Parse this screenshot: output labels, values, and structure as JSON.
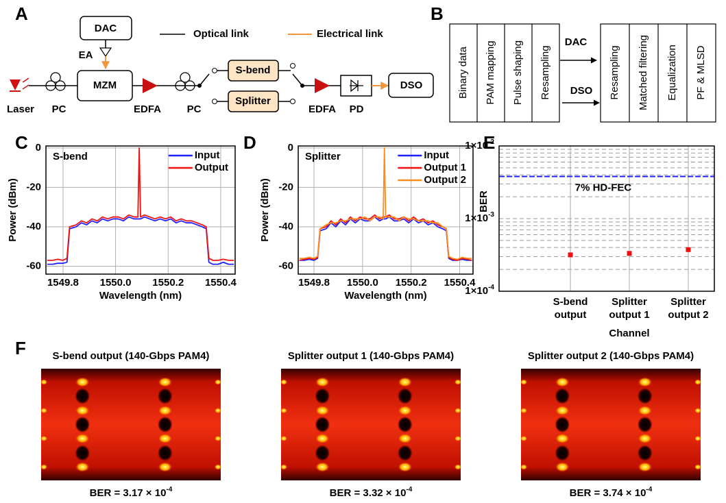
{
  "panel_labels": [
    "A",
    "B",
    "C",
    "D",
    "E",
    "F"
  ],
  "diagram_a": {
    "dac": "DAC",
    "ea": "EA",
    "mzm": "MZM",
    "laser": "Laser",
    "pc1": "PC",
    "edfa1": "EDFA",
    "pc2": "PC",
    "sbend": "S-bend",
    "splitter": "Splitter",
    "edfa2": "EDFA",
    "pd": "PD",
    "dso": "DSO",
    "legend_optical": "Optical link",
    "legend_electrical": "Electrical link"
  },
  "diagram_b": {
    "tx_steps": [
      "Binary data",
      "PAM mapping",
      "Pulse shaping",
      "Resampling"
    ],
    "rx_steps": [
      "Resampling",
      "Matched filtering",
      "Equalization",
      "PF & MLSD"
    ],
    "dac": "DAC",
    "dso": "DSO"
  },
  "chart_data": [
    {
      "type": "line",
      "annotation": "S-bend",
      "xlabel": "Wavelength (nm)",
      "ylabel": "Power (dBm)",
      "x": [
        1549.74,
        1549.76,
        1549.78,
        1549.8,
        1549.815,
        1549.825,
        1549.85,
        1549.87,
        1549.89,
        1549.91,
        1549.93,
        1549.95,
        1549.97,
        1549.99,
        1550.01,
        1550.03,
        1550.05,
        1550.07,
        1550.085,
        1550.09,
        1550.095,
        1550.11,
        1550.13,
        1550.15,
        1550.17,
        1550.19,
        1550.21,
        1550.23,
        1550.25,
        1550.27,
        1550.29,
        1550.31,
        1550.33,
        1550.345,
        1550.355,
        1550.37,
        1550.39,
        1550.41,
        1550.43,
        1550.45
      ],
      "series": [
        {
          "name": "Input",
          "color": "#1f1fff",
          "values": [
            -59,
            -59,
            -58.5,
            -58.5,
            -58,
            -41,
            -40,
            -38,
            -39,
            -37,
            -38,
            -36,
            -37,
            -36,
            -36,
            -37,
            -35,
            -36,
            -36,
            -36,
            -36,
            -35,
            -36,
            -37,
            -36,
            -37,
            -36,
            -38,
            -37,
            -38,
            -38,
            -39,
            -40,
            -41,
            -58,
            -59,
            -59,
            -58,
            -59,
            -59
          ]
        },
        {
          "name": "Output",
          "color": "#f01010",
          "values": [
            -57,
            -57,
            -56.5,
            -57,
            -56,
            -40,
            -39,
            -37,
            -38,
            -36,
            -37,
            -35,
            -36,
            -35,
            -35,
            -36,
            -34,
            -35,
            -35,
            0,
            -35,
            -34,
            -35,
            -36,
            -35,
            -36,
            -35,
            -37,
            -36,
            -37,
            -37,
            -38,
            -39,
            -40,
            -56,
            -57,
            -57,
            -56.5,
            -57,
            -57
          ]
        }
      ],
      "xlim": [
        1549.735,
        1550.455
      ],
      "xticks": [
        1549.8,
        {
          "value": 1550,
          "label": "1550.0"
        },
        1550.2,
        1550.4
      ],
      "ylim": [
        -64,
        1
      ],
      "yticks": [
        0,
        -20,
        -40,
        -60
      ],
      "grid": true,
      "legend": "upper right"
    },
    {
      "type": "line",
      "annotation": "Splitter",
      "xlabel": "Wavelength (nm)",
      "ylabel": "Power (dBm)",
      "x": [
        1549.74,
        1549.76,
        1549.78,
        1549.8,
        1549.815,
        1549.825,
        1549.85,
        1549.87,
        1549.89,
        1549.91,
        1549.93,
        1549.95,
        1549.97,
        1549.99,
        1550.01,
        1550.03,
        1550.05,
        1550.07,
        1550.085,
        1550.09,
        1550.095,
        1550.11,
        1550.13,
        1550.15,
        1550.17,
        1550.19,
        1550.21,
        1550.23,
        1550.25,
        1550.27,
        1550.29,
        1550.31,
        1550.33,
        1550.345,
        1550.355,
        1550.37,
        1550.39,
        1550.41,
        1550.43,
        1550.45
      ],
      "series": [
        {
          "name": "Input",
          "color": "#1f1fff",
          "values": [
            -57,
            -57,
            -56.5,
            -57,
            -56,
            -42,
            -41,
            -38,
            -40,
            -37,
            -39,
            -36,
            -38,
            -36,
            -37,
            -37,
            -35,
            -37,
            -36,
            -36,
            -36,
            -35,
            -37,
            -37,
            -36,
            -38,
            -36,
            -38,
            -37,
            -39,
            -38,
            -40,
            -41,
            -42,
            -56,
            -57,
            -57,
            -56.5,
            -57,
            -57
          ]
        },
        {
          "name": "Output 1",
          "color": "#f01010",
          "values": [
            -57,
            -56.5,
            -56,
            -56.5,
            -55.5,
            -41,
            -40,
            -37,
            -39,
            -36,
            -38,
            -35,
            -37,
            -35,
            -36,
            -36,
            -34,
            -36,
            -35,
            -35,
            -35,
            -34,
            -36,
            -36,
            -35,
            -37,
            -35,
            -37,
            -36,
            -38,
            -37,
            -39,
            -40,
            -41,
            -55.5,
            -56.5,
            -57,
            -56,
            -56.5,
            -57
          ]
        },
        {
          "name": "Output 2",
          "color": "#ff8c1a",
          "values": [
            -56,
            -56,
            -55.5,
            -56,
            -55,
            -41,
            -39,
            -38,
            -38,
            -37,
            -37,
            -36,
            -36,
            -36,
            -35,
            -37,
            -35,
            -35,
            -36,
            0,
            -35,
            -35,
            -35,
            -37,
            -35,
            -36,
            -36,
            -37,
            -37,
            -37,
            -38,
            -38,
            -40,
            -41,
            -55,
            -56,
            -56.5,
            -55.5,
            -56,
            -56
          ]
        }
      ],
      "xlim": [
        1549.735,
        1550.455
      ],
      "xticks": [
        1549.8,
        {
          "value": 1550,
          "label": "1550.0"
        },
        1550.2,
        1550.4
      ],
      "ylim": [
        -64,
        1
      ],
      "yticks": [
        0,
        -20,
        -40,
        -60
      ],
      "grid": true,
      "legend": "upper right"
    },
    {
      "type": "scatter",
      "xlabel": "Channel",
      "ylabel": "BER",
      "log_y": true,
      "categories": [
        [
          "S-bend",
          "output"
        ],
        [
          "Splitter",
          "output 1"
        ],
        [
          "Splitter",
          "output 2"
        ]
      ],
      "values": [
        0.000317,
        0.000332,
        0.000374
      ],
      "color": "#f01010",
      "ylim": [
        0.0001,
        0.01
      ],
      "yticks": [
        {
          "value": 0.0001,
          "label": "1×10",
          "sup": "-4"
        },
        {
          "value": 0.001,
          "label": "1×10",
          "sup": "-3"
        },
        {
          "value": 0.01,
          "label": "1×10",
          "sup": "-2"
        }
      ],
      "minor_yticks": [
        0.0002,
        0.0003,
        0.0004,
        0.0005,
        0.0006,
        0.0007,
        0.0008,
        0.0009,
        0.002,
        0.003,
        0.004,
        0.005,
        0.006,
        0.007,
        0.008,
        0.009
      ],
      "threshold": {
        "value": 0.0038,
        "label": "7% HD-FEC",
        "color": "#1f1fff"
      },
      "grid": true
    }
  ],
  "eye_diagrams": [
    {
      "title": "S-bend output  (140-Gbps PAM4)",
      "ber": "BER = 3.17 × 10",
      "ber_sup": "-4"
    },
    {
      "title": "Splitter output 1 (140-Gbps PAM4)",
      "ber": "BER = 3.32 × 10",
      "ber_sup": "-4"
    },
    {
      "title": "Splitter output 2 (140-Gbps PAM4)",
      "ber": "BER = 3.74 × 10",
      "ber_sup": "-4"
    }
  ]
}
